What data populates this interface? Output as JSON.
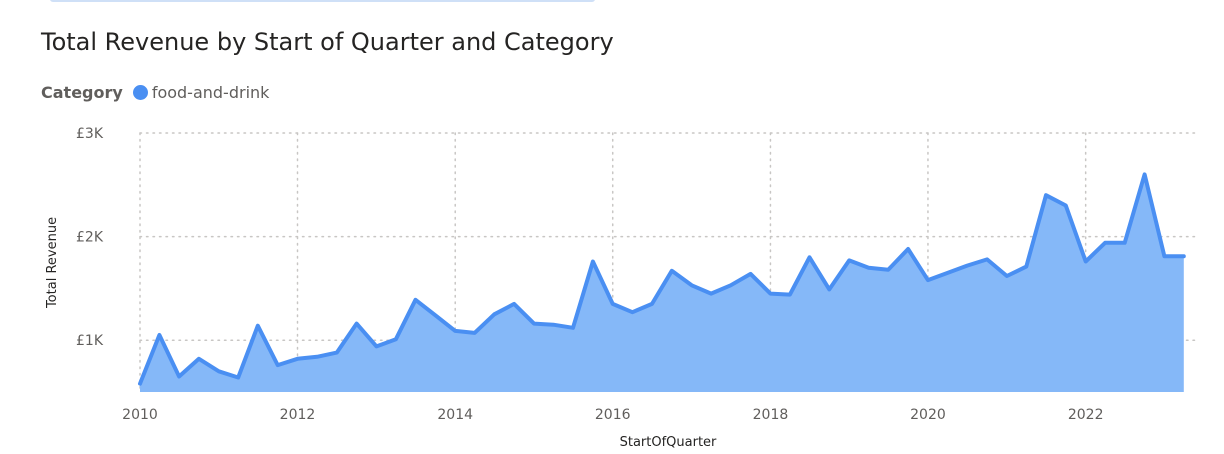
{
  "chart_data": {
    "type": "area",
    "title": "Total Revenue by Start of Quarter and Category",
    "legend": {
      "title": "Category",
      "placement": "top-left"
    },
    "xlabel": "StartOfQuarter",
    "ylabel": "Total Revenue",
    "x_ticks": [
      "2010",
      "2012",
      "2014",
      "2016",
      "2018",
      "2020",
      "2022"
    ],
    "y_ticks": [
      {
        "value": 1000,
        "label": "£1K"
      },
      {
        "value": 2000,
        "label": "£2K"
      },
      {
        "value": 3000,
        "label": "£3K"
      }
    ],
    "xlim": [
      "2010-01-01",
      "2023-06-01"
    ],
    "ylim": [
      500,
      3000
    ],
    "grid": true,
    "x": [
      "2010-01-01",
      "2010-04-01",
      "2010-07-01",
      "2010-10-01",
      "2011-01-01",
      "2011-04-01",
      "2011-07-01",
      "2011-10-01",
      "2012-01-01",
      "2012-04-01",
      "2012-07-01",
      "2012-10-01",
      "2013-01-01",
      "2013-04-01",
      "2013-07-01",
      "2013-10-01",
      "2014-01-01",
      "2014-04-01",
      "2014-07-01",
      "2014-10-01",
      "2015-01-01",
      "2015-04-01",
      "2015-07-01",
      "2015-10-01",
      "2016-01-01",
      "2016-04-01",
      "2016-07-01",
      "2016-10-01",
      "2017-01-01",
      "2017-04-01",
      "2017-07-01",
      "2017-10-01",
      "2018-01-01",
      "2018-04-01",
      "2018-07-01",
      "2018-10-01",
      "2019-01-01",
      "2019-04-01",
      "2019-07-01",
      "2019-10-01",
      "2020-01-01",
      "2020-04-01",
      "2020-07-01",
      "2020-10-01",
      "2021-01-01",
      "2021-04-01",
      "2021-07-01",
      "2021-10-01",
      "2022-01-01",
      "2022-04-01",
      "2022-07-01",
      "2022-10-01",
      "2023-01-01",
      "2023-04-01"
    ],
    "series": [
      {
        "name": "food-and-drink",
        "color": "#4a8ff2",
        "fill": "#85b8f8",
        "values": [
          580,
          1050,
          650,
          820,
          700,
          640,
          1140,
          760,
          820,
          840,
          880,
          1160,
          940,
          1010,
          1390,
          1240,
          1090,
          1070,
          1250,
          1350,
          1160,
          1150,
          1120,
          1760,
          1350,
          1270,
          1350,
          1670,
          1530,
          1450,
          1530,
          1640,
          1450,
          1440,
          1800,
          1490,
          1770,
          1700,
          1680,
          1880,
          1580,
          1650,
          1720,
          1780,
          1620,
          1710,
          2400,
          2300,
          1760,
          1940,
          1940,
          2600,
          1810,
          1810
        ]
      }
    ]
  }
}
